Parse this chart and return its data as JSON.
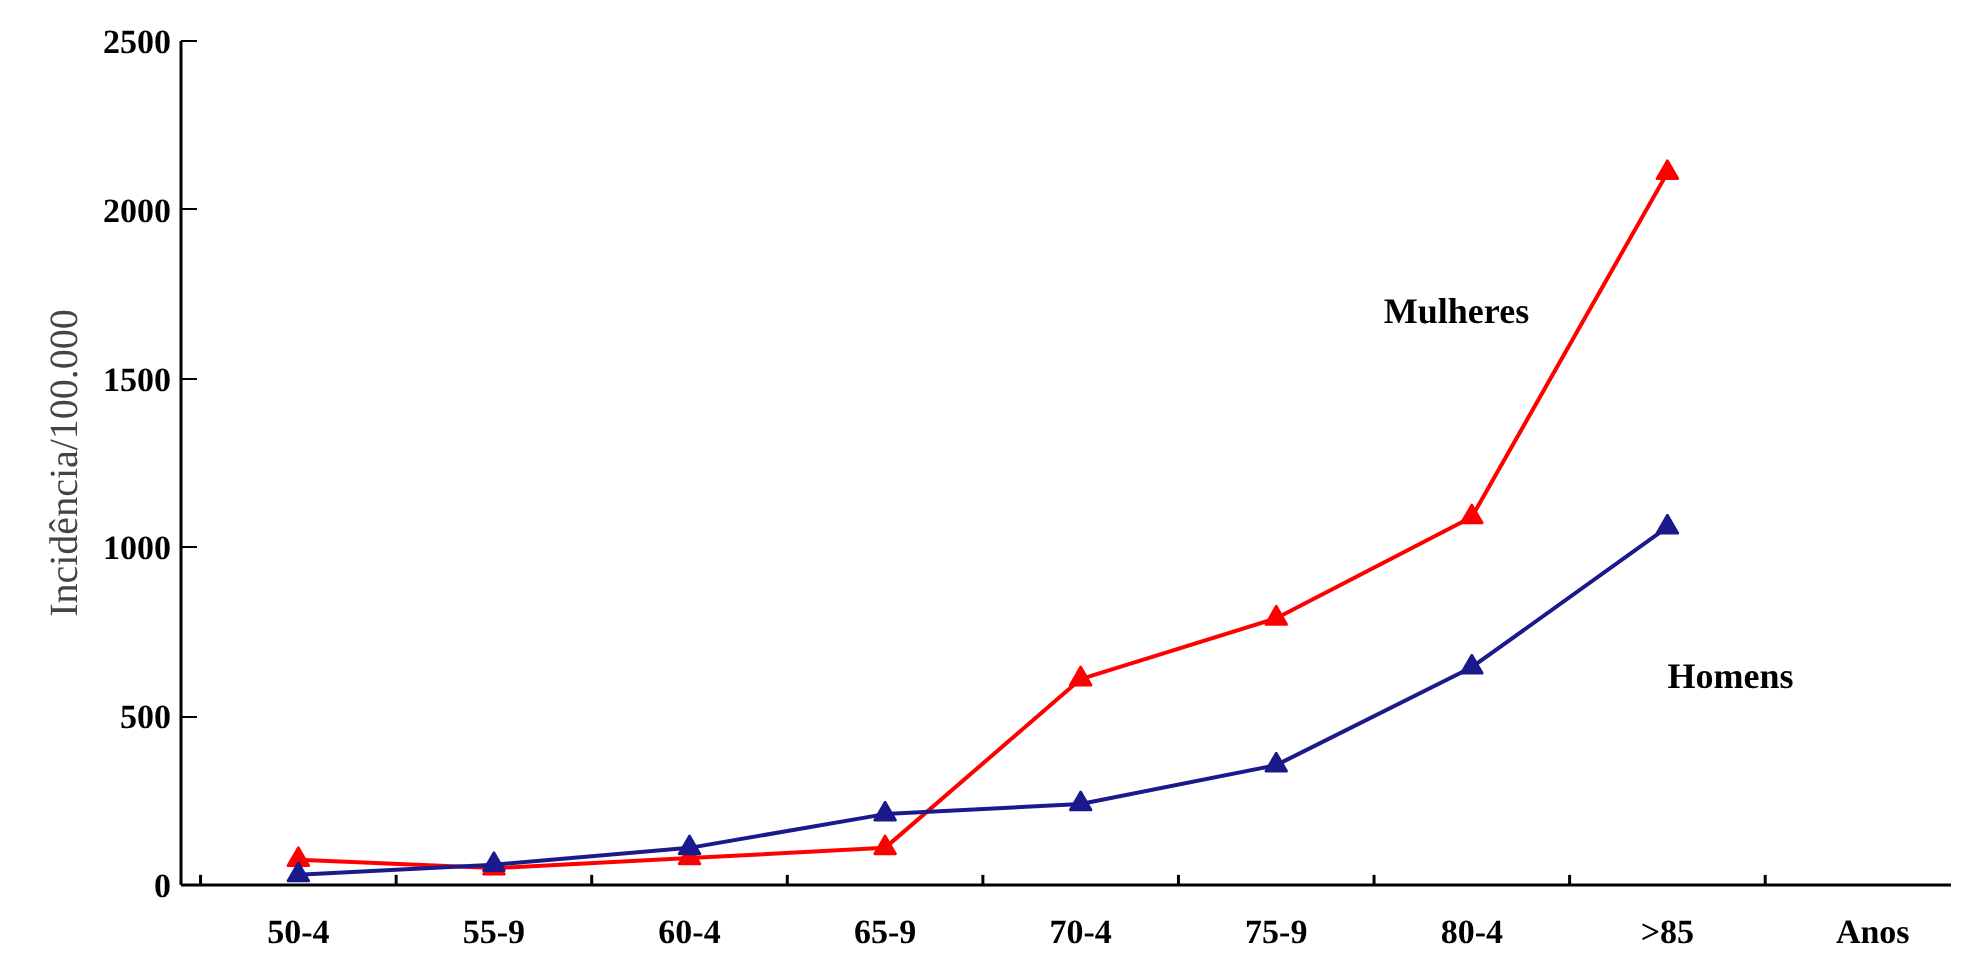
{
  "chart_data": {
    "type": "line",
    "xlabel": "Anos",
    "ylabel": "Incidência/100.000",
    "categories": [
      "50-4",
      "55-9",
      "60-4",
      "65-9",
      "70-4",
      "75-9",
      "80-4",
      ">85"
    ],
    "series": [
      {
        "name": "Mulheres",
        "color": "#ff0000",
        "values": [
          75,
          50,
          80,
          110,
          610,
          790,
          1090,
          2110
        ]
      },
      {
        "name": "Homens",
        "color": "#1a1a8c",
        "values": [
          30,
          60,
          110,
          210,
          240,
          355,
          645,
          1060
        ]
      }
    ],
    "ylim": [
      0,
      2500
    ],
    "yticks": [
      0,
      500,
      1000,
      1500,
      2000,
      2500
    ],
    "marker": "triangle",
    "line_style": "solid",
    "grid": false
  }
}
